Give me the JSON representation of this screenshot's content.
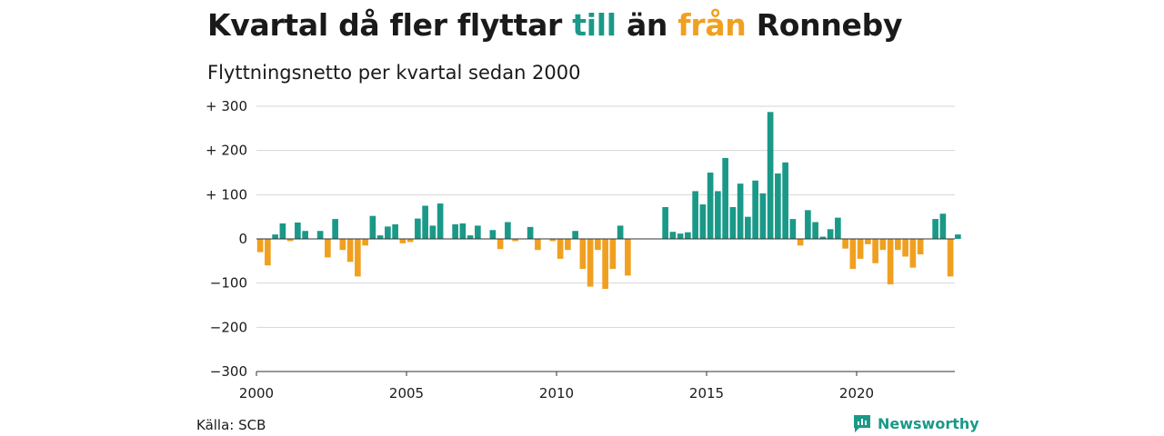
{
  "title": {
    "part1": "Kvartal då fler flyttar ",
    "till": "till",
    "part2": " än ",
    "fran": "från",
    "part3": " Ronneby"
  },
  "subtitle": "Flyttningsnetto per kvartal sedan 2000",
  "source": "Källa: SCB",
  "brand": "Newsworthy",
  "colors": {
    "positive": "#1a9988",
    "negative": "#f0a020",
    "grid": "#d6d6d6"
  },
  "chart_data": {
    "type": "bar",
    "x_start_year": 2000,
    "periods_per_year": 4,
    "ylim": [
      -300,
      300
    ],
    "yticks": [
      {
        "value": 300,
        "label": "+ 300"
      },
      {
        "value": 200,
        "label": "+ 200"
      },
      {
        "value": 100,
        "label": "+ 100"
      },
      {
        "value": 0,
        "label": "0"
      },
      {
        "value": -100,
        "label": "−100"
      },
      {
        "value": -200,
        "label": "−200"
      },
      {
        "value": -300,
        "label": "−300"
      }
    ],
    "xticks": [
      {
        "year": 2000,
        "label": "2000"
      },
      {
        "year": 2005,
        "label": "2005"
      },
      {
        "year": 2010,
        "label": "2010"
      },
      {
        "year": 2015,
        "label": "2015"
      },
      {
        "year": 2020,
        "label": "2020"
      }
    ],
    "values": [
      -30,
      -60,
      10,
      35,
      -5,
      37,
      18,
      0,
      18,
      -42,
      45,
      -25,
      -52,
      -85,
      -15,
      52,
      8,
      28,
      33,
      -10,
      -7,
      46,
      75,
      30,
      80,
      0,
      33,
      35,
      8,
      30,
      0,
      20,
      -23,
      38,
      -5,
      0,
      27,
      -25,
      0,
      -5,
      -45,
      -25,
      18,
      -68,
      -108,
      -25,
      -113,
      -68,
      30,
      -83,
      0,
      0,
      0,
      0,
      72,
      16,
      12,
      15,
      108,
      78,
      150,
      108,
      183,
      72,
      125,
      50,
      132,
      103,
      287,
      148,
      173,
      45,
      -15,
      65,
      38,
      5,
      22,
      48,
      -22,
      -68,
      -45,
      -12,
      -55,
      -25,
      -103,
      -25,
      -40,
      -65,
      -35,
      0,
      45,
      57,
      -85,
      10
    ]
  }
}
